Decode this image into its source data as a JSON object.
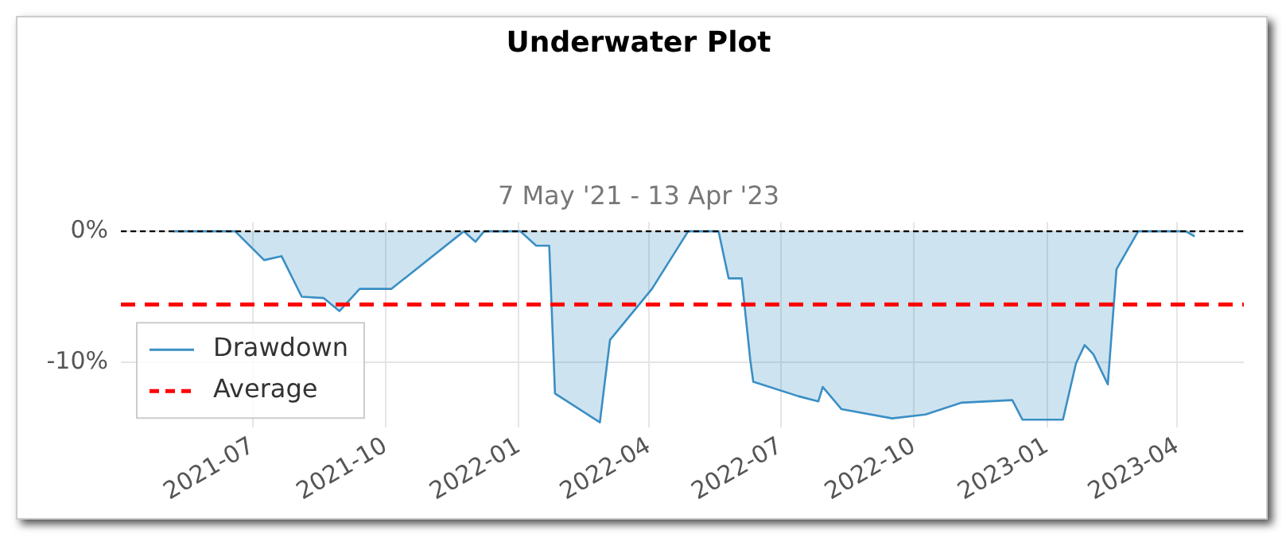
{
  "chart_data": {
    "type": "area",
    "title": "Underwater Plot",
    "subtitle": "7 May '21 - 13 Apr '23",
    "x": [
      "2021-05-07",
      "2021-06-19",
      "2021-07-09",
      "2021-07-21",
      "2021-08-04",
      "2021-08-19",
      "2021-08-30",
      "2021-09-13",
      "2021-10-05",
      "2021-11-24",
      "2021-12-02",
      "2021-12-08",
      "2022-01-02",
      "2022-01-13",
      "2022-01-22",
      "2022-01-26",
      "2022-02-26",
      "2022-03-05",
      "2022-04-03",
      "2022-04-28",
      "2022-05-19",
      "2022-05-26",
      "2022-06-04",
      "2022-06-10",
      "2022-06-12",
      "2022-07-13",
      "2022-07-27",
      "2022-07-30",
      "2022-08-12",
      "2022-09-16",
      "2022-10-09",
      "2022-11-03",
      "2022-12-08",
      "2022-12-15",
      "2023-01-12",
      "2023-01-21",
      "2023-01-27",
      "2023-02-02",
      "2023-02-12",
      "2023-02-18",
      "2023-03-05",
      "2023-04-07",
      "2023-04-13"
    ],
    "series": [
      {
        "name": "Drawdown",
        "color": "#3a8fc4",
        "values": [
          0,
          0,
          -2.2,
          -1.9,
          -5.0,
          -5.1,
          -6.1,
          -4.4,
          -4.4,
          0,
          -0.8,
          0,
          0,
          -1.1,
          -1.1,
          -12.4,
          -14.6,
          -8.3,
          -4.4,
          0,
          0,
          -3.6,
          -3.6,
          -9.9,
          -11.5,
          -12.6,
          -13.0,
          -11.9,
          -13.6,
          -14.3,
          -14.0,
          -13.1,
          -12.9,
          -14.4,
          -14.4,
          -10.1,
          -8.7,
          -9.4,
          -11.7,
          -2.9,
          0,
          0,
          -0.4
        ]
      }
    ],
    "ref_lines": [
      {
        "axis": "y",
        "value": 0,
        "label": null,
        "color": "#000000",
        "line_style": "dashed"
      },
      {
        "axis": "y",
        "value": -5.6,
        "label": "Average",
        "color": "#ff0000",
        "line_style": "dashed"
      }
    ],
    "xlim": [
      "2021-04-01",
      "2023-05-17"
    ],
    "xticks": [
      {
        "value": "2021-07-01",
        "label": "2021-07"
      },
      {
        "value": "2021-10-01",
        "label": "2021-10"
      },
      {
        "value": "2022-01-01",
        "label": "2022-01"
      },
      {
        "value": "2022-04-01",
        "label": "2022-04"
      },
      {
        "value": "2022-07-01",
        "label": "2022-07"
      },
      {
        "value": "2022-10-01",
        "label": "2022-10"
      },
      {
        "value": "2023-01-01",
        "label": "2023-01"
      },
      {
        "value": "2023-04-01",
        "label": "2023-04"
      }
    ],
    "ylim": [
      -15,
      0.7
    ],
    "yticks": [
      {
        "value": -10,
        "label": "-10%"
      },
      {
        "value": 0,
        "label": "0%"
      }
    ],
    "grid": true,
    "legend": "bottom left",
    "line_style": "solid",
    "marker": "none"
  }
}
